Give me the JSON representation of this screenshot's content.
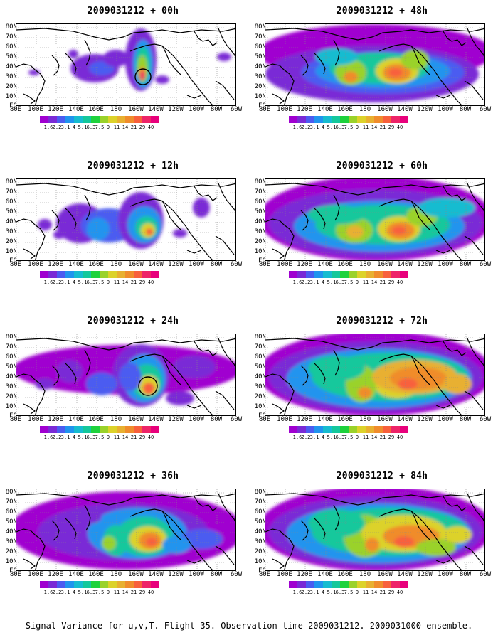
{
  "caption": "Signal Variance for u,v,T. Flight 35. Observation time 2009031212. 2009031000 ensemble.",
  "lat_labels": [
    "80N",
    "70N",
    "60N",
    "50N",
    "40N",
    "30N",
    "20N",
    "10N",
    "EQ"
  ],
  "lon_labels": [
    "80E",
    "100E",
    "120E",
    "140E",
    "160E",
    "180",
    "160W",
    "140W",
    "120W",
    "100W",
    "80W",
    "60W"
  ],
  "colorbar": {
    "colors": [
      "#a000d0",
      "#7a2ad6",
      "#4b5cf0",
      "#2094ee",
      "#16bcd0",
      "#14c89c",
      "#1ed23c",
      "#9ad22a",
      "#dcd22a",
      "#e8b030",
      "#f08c2c",
      "#f8603c",
      "#ee2468",
      "#e8007c",
      "#ffffff"
    ],
    "labels": [
      "1.6",
      "2.2",
      "3.1",
      "4",
      "5.1",
      "6.3",
      "7.5",
      "9",
      "11",
      "14",
      "21",
      "29",
      "40"
    ]
  },
  "panels": [
    {
      "title": "2009031212 + 00h"
    },
    {
      "title": "2009031212 + 48h"
    },
    {
      "title": "2009031212 + 12h"
    },
    {
      "title": "2009031212 + 60h"
    },
    {
      "title": "2009031212 + 24h"
    },
    {
      "title": "2009031212 + 72h"
    },
    {
      "title": "2009031212 + 36h"
    },
    {
      "title": "2009031212 + 84h"
    }
  ]
}
